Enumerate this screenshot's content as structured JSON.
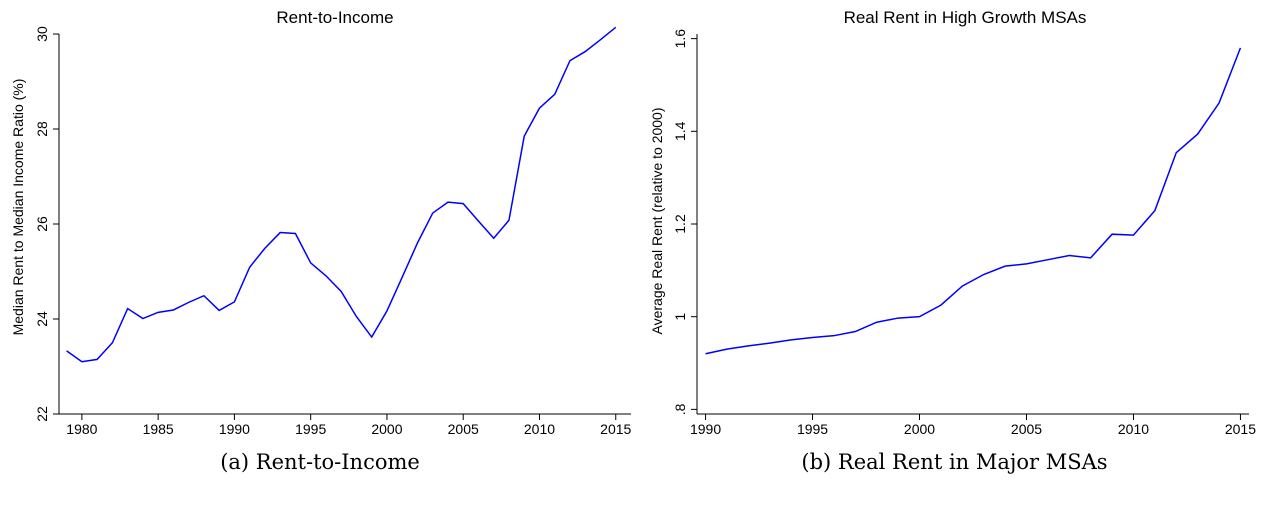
{
  "chart_data": [
    {
      "type": "line",
      "title": "Rent-to-Income",
      "xlabel": "",
      "ylabel": "Median Rent to Median Income Ratio (%)",
      "xlim": [
        1978.5,
        2016
      ],
      "ylim": [
        22,
        30
      ],
      "x_ticks": [
        1980,
        1985,
        1990,
        1995,
        2000,
        2005,
        2010,
        2015
      ],
      "y_ticks": [
        22,
        24,
        26,
        28,
        30
      ],
      "y_tick_labels": [
        "22",
        "24",
        "26",
        "28",
        "30"
      ],
      "grid": false,
      "line_color": "#0000ff",
      "series": [
        {
          "x": [
            1979,
            1980,
            1981,
            1982,
            1983,
            1984,
            1985,
            1986,
            1987,
            1988,
            1989,
            1990,
            1991,
            1992,
            1993,
            1994,
            1995,
            1996,
            1997,
            1998,
            1999,
            2000,
            2001,
            2002,
            2003,
            2004,
            2005,
            2006,
            2007,
            2008,
            2009,
            2010,
            2011,
            2012,
            2013,
            2014,
            2015
          ],
          "y": [
            23.33,
            23.1,
            23.15,
            23.5,
            24.22,
            24.01,
            24.14,
            24.19,
            24.35,
            24.49,
            24.18,
            24.36,
            25.09,
            25.49,
            25.82,
            25.8,
            25.18,
            24.91,
            24.58,
            24.05,
            23.62,
            24.17,
            24.88,
            25.6,
            26.23,
            26.46,
            26.43,
            26.06,
            25.7,
            26.08,
            27.85,
            28.44,
            28.73,
            29.44,
            29.63,
            29.88,
            30.14
          ]
        }
      ]
    },
    {
      "type": "line",
      "title": "Real Rent in High Growth MSAs",
      "xlabel": "",
      "ylabel": "Average Real Rent (relative to 2000)",
      "xlim": [
        1989.6,
        2015.4
      ],
      "ylim": [
        0.79,
        1.61
      ],
      "x_ticks": [
        1990,
        1995,
        2000,
        2005,
        2010,
        2015
      ],
      "y_ticks": [
        0.8,
        1.0,
        1.2,
        1.4,
        1.6
      ],
      "y_tick_labels": [
        ".8",
        "1",
        "1.2",
        "1.4",
        "1.6"
      ],
      "grid": false,
      "line_color": "#0000ff",
      "series": [
        {
          "x": [
            1990,
            1991,
            1992,
            1993,
            1994,
            1995,
            1996,
            1997,
            1998,
            1999,
            2000,
            2001,
            2002,
            2003,
            2004,
            2005,
            2006,
            2007,
            2008,
            2009,
            2010,
            2011,
            2012,
            2013,
            2014,
            2015
          ],
          "y": [
            0.92,
            0.93,
            0.937,
            0.943,
            0.95,
            0.955,
            0.959,
            0.968,
            0.988,
            0.997,
            1.0,
            1.025,
            1.066,
            1.091,
            1.109,
            1.114,
            1.123,
            1.132,
            1.127,
            1.178,
            1.176,
            1.229,
            1.354,
            1.394,
            1.461,
            1.58
          ]
        }
      ]
    }
  ],
  "captions": {
    "a": "(a) Rent-to-Income",
    "b": "(b) Real Rent in Major MSAs"
  }
}
